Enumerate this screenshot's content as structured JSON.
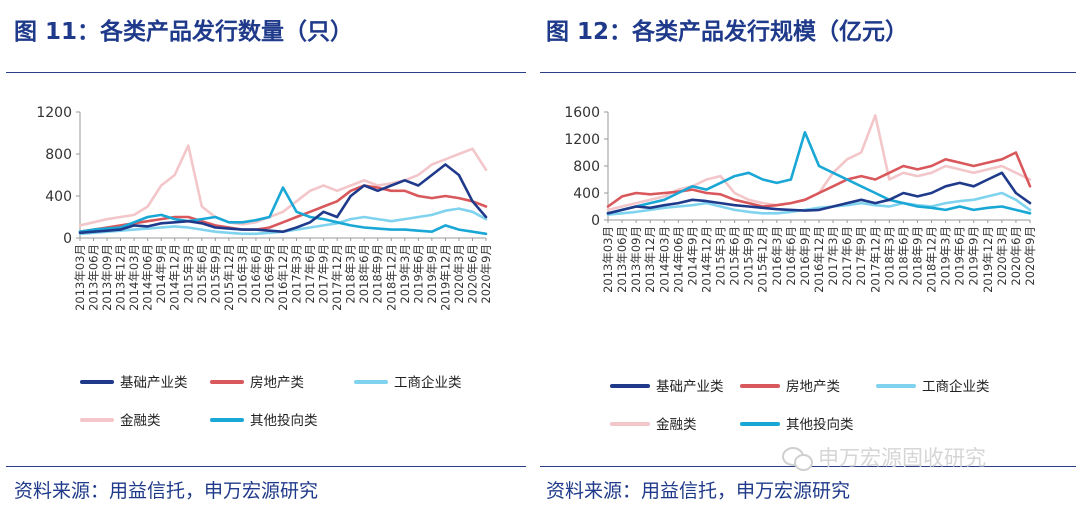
{
  "titles": {
    "left": "图 11：各类产品发行数量（只）",
    "right": "图 12：各类产品发行规模（亿元）"
  },
  "source": {
    "left": "资料来源：用益信托，申万宏源研究",
    "right": "资料来源：用益信托，申万宏源研究"
  },
  "watermark": {
    "text": "申万宏源固收研究",
    "icon": "wechat-icon"
  },
  "colors": {
    "基础产业类": "#1f3a8a",
    "房地产类": "#d9585c",
    "工商企业类": "#7fd3ee",
    "金融类": "#f3c6c9",
    "其他投向类": "#19a7d6",
    "rule": "#2b3f86",
    "title": "#1f3a8a"
  },
  "chart_data": [
    {
      "type": "line",
      "x_labels": [
        "2013年03月",
        "2013年06月",
        "2013年09月",
        "2013年12月",
        "2014年03月",
        "2014年06月",
        "2014年9月",
        "2014年12月",
        "2015年3月",
        "2015年6月",
        "2015年9月",
        "2015年12月",
        "2016年3月",
        "2016年6月",
        "2016年9月",
        "2016年12月",
        "2017年3月",
        "2017年6月",
        "2017年9月",
        "2017年12月",
        "2018年3月",
        "2018年6月",
        "2018年9月",
        "2018年12月",
        "2019年3月",
        "2019年6月",
        "2019年9月",
        "2019年12月",
        "2020年3月",
        "2020年6月",
        "2020年9月"
      ],
      "ylim": [
        0,
        1200
      ],
      "yticks": [
        0,
        400,
        800,
        1200
      ],
      "legend_rows": [
        [
          "基础产业类",
          "房地产类",
          "工商企业类"
        ],
        [
          "金融类",
          "其他投向类"
        ]
      ],
      "series": [
        {
          "name": "基础产业类",
          "values": [
            50,
            60,
            70,
            80,
            120,
            110,
            140,
            150,
            160,
            140,
            100,
            90,
            80,
            80,
            70,
            60,
            100,
            150,
            250,
            200,
            400,
            500,
            450,
            500,
            550,
            500,
            600,
            700,
            600,
            350,
            200
          ]
        },
        {
          "name": "房地产类",
          "values": [
            60,
            80,
            100,
            120,
            140,
            160,
            180,
            200,
            200,
            160,
            120,
            100,
            80,
            80,
            100,
            150,
            200,
            250,
            300,
            350,
            450,
            500,
            480,
            450,
            450,
            400,
            380,
            400,
            380,
            350,
            300
          ]
        },
        {
          "name": "工商企业类",
          "values": [
            40,
            50,
            60,
            70,
            80,
            90,
            100,
            110,
            100,
            80,
            60,
            50,
            40,
            40,
            50,
            60,
            80,
            100,
            120,
            140,
            180,
            200,
            180,
            160,
            180,
            200,
            220,
            260,
            280,
            250,
            180
          ]
        },
        {
          "name": "金融类",
          "values": [
            120,
            150,
            180,
            200,
            220,
            300,
            500,
            600,
            880,
            300,
            200,
            150,
            130,
            150,
            200,
            250,
            350,
            450,
            500,
            450,
            500,
            550,
            500,
            520,
            550,
            600,
            700,
            750,
            800,
            850,
            650
          ]
        },
        {
          "name": "其他投向类",
          "values": [
            60,
            80,
            90,
            100,
            150,
            200,
            220,
            180,
            160,
            180,
            200,
            150,
            150,
            170,
            200,
            480,
            250,
            200,
            180,
            150,
            120,
            100,
            90,
            80,
            80,
            70,
            60,
            120,
            80,
            60,
            40
          ]
        }
      ]
    },
    {
      "type": "line",
      "x_labels": [
        "2013年03月",
        "2013年06月",
        "2013年09月",
        "2013年12月",
        "2014年03月",
        "2014年06月",
        "2014年9月",
        "2014年12月",
        "2015年3月",
        "2015年6月",
        "2015年9月",
        "2015年12月",
        "2016年3月",
        "2016年6月",
        "2016年9月",
        "2016年12月",
        "2017年3月",
        "2017年6月",
        "2017年9月",
        "2017年12月",
        "2018年3月",
        "2018年6月",
        "2018年9月",
        "2018年12月",
        "2019年3月",
        "2019年6月",
        "2019年9月",
        "2019年12月",
        "2020年3月",
        "2020年6月",
        "2020年9月"
      ],
      "ylim": [
        0,
        1600
      ],
      "yticks": [
        0,
        400,
        800,
        1200,
        1600
      ],
      "legend_rows": [
        [
          "基础产业类",
          "房地产类",
          "工商企业类"
        ],
        [
          "金融类",
          "其他投向类"
        ]
      ],
      "series": [
        {
          "name": "基础产业类",
          "values": [
            100,
            150,
            200,
            180,
            220,
            250,
            300,
            280,
            250,
            220,
            200,
            180,
            160,
            150,
            140,
            150,
            200,
            250,
            300,
            250,
            300,
            400,
            350,
            400,
            500,
            550,
            500,
            600,
            700,
            400,
            250
          ]
        },
        {
          "name": "房地产类",
          "values": [
            200,
            350,
            400,
            380,
            400,
            420,
            450,
            400,
            380,
            300,
            250,
            200,
            220,
            250,
            300,
            400,
            500,
            600,
            650,
            600,
            700,
            800,
            750,
            800,
            900,
            850,
            800,
            850,
            900,
            1000,
            500
          ]
        },
        {
          "name": "工商企业类",
          "values": [
            80,
            100,
            120,
            150,
            180,
            200,
            220,
            250,
            200,
            150,
            120,
            100,
            100,
            120,
            150,
            180,
            200,
            220,
            250,
            220,
            200,
            250,
            220,
            200,
            250,
            280,
            300,
            350,
            400,
            300,
            150
          ]
        },
        {
          "name": "金融类",
          "values": [
            150,
            200,
            250,
            300,
            350,
            450,
            500,
            600,
            650,
            400,
            300,
            250,
            220,
            250,
            300,
            400,
            700,
            900,
            1000,
            1550,
            600,
            700,
            650,
            700,
            800,
            750,
            700,
            750,
            800,
            700,
            600
          ]
        },
        {
          "name": "其他投向类",
          "values": [
            100,
            150,
            200,
            250,
            300,
            400,
            500,
            450,
            550,
            650,
            700,
            600,
            550,
            600,
            1300,
            800,
            700,
            600,
            500,
            400,
            300,
            250,
            200,
            180,
            150,
            200,
            150,
            180,
            200,
            150,
            100
          ]
        }
      ]
    }
  ]
}
